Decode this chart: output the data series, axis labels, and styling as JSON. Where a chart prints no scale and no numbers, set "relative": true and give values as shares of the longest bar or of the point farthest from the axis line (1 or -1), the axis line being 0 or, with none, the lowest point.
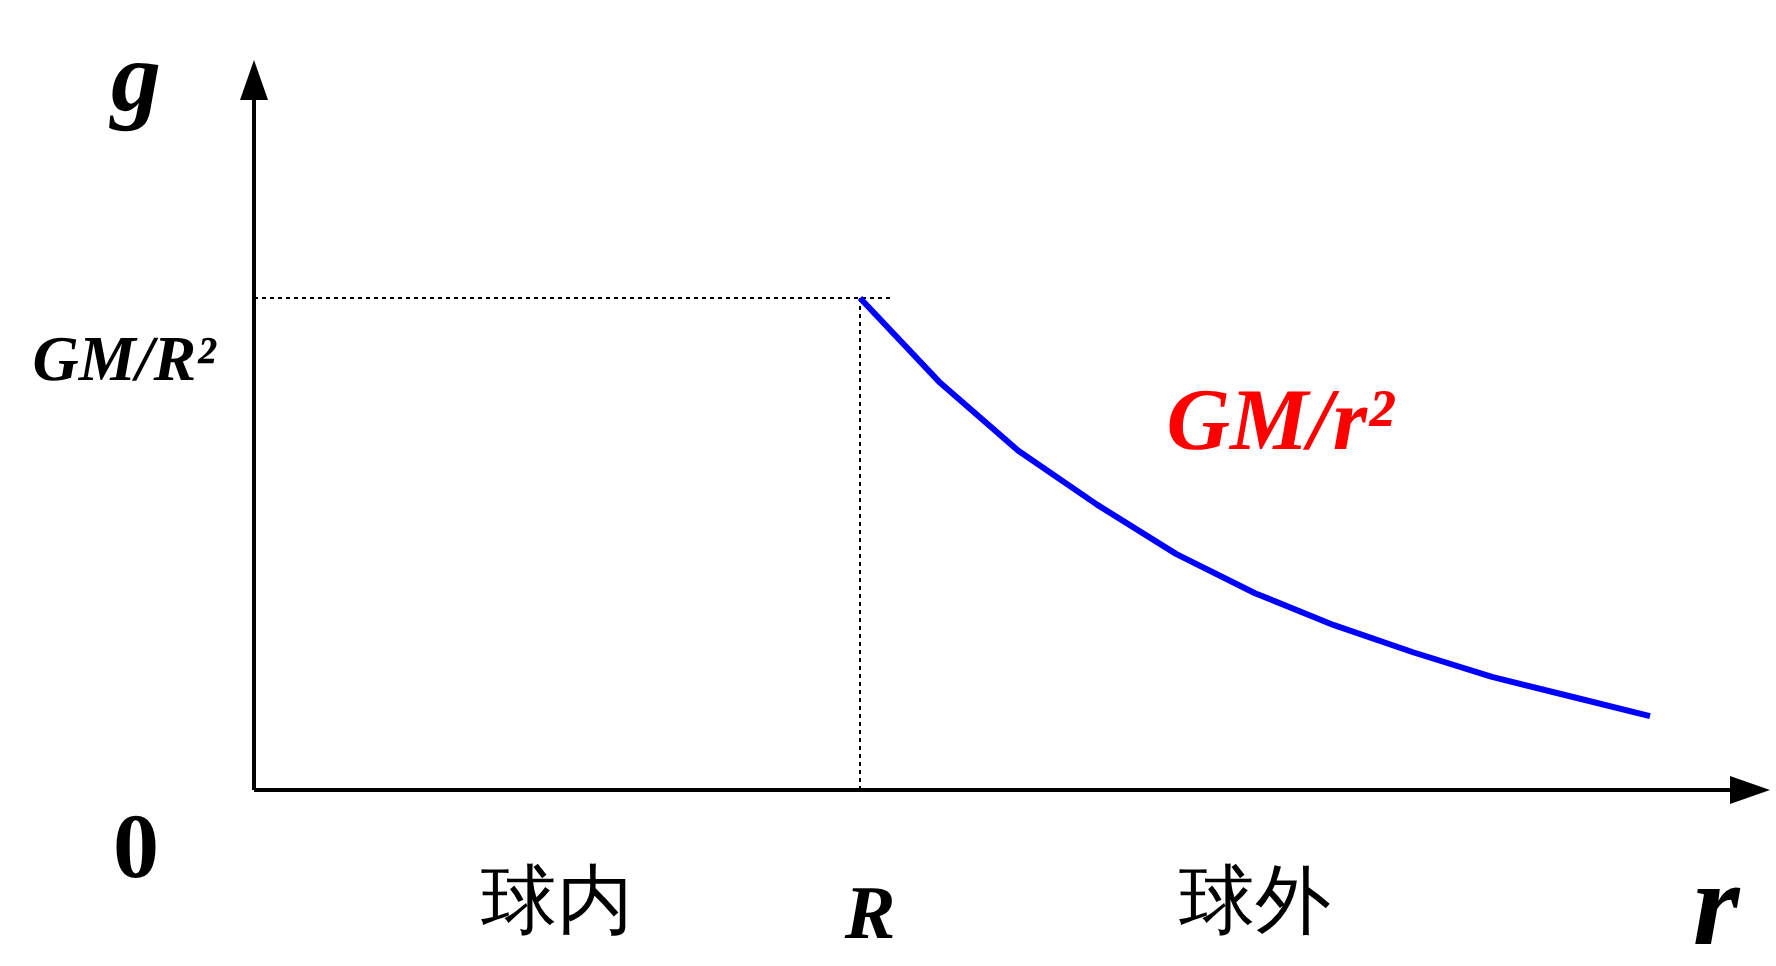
{
  "chart_data": {
    "type": "line",
    "relative": true,
    "xlabel": "r",
    "categories": [
      null,
      null,
      null,
      null,
      null,
      null,
      null,
      null,
      null,
      null,
      null
    ],
    "series": [
      {
        "name": "GM/r²",
        "color": "#0000ff",
        "values": [
          1.0,
          0.83,
          0.69,
          0.58,
          0.48,
          0.4,
          0.335,
          0.28,
          0.23,
          0.19,
          0.15
        ]
      }
    ],
    "annotations": [
      "0",
      "GM/R²",
      "R",
      "球内",
      "球外",
      "g"
    ],
    "marker": "none",
    "line_style": "solid"
  }
}
